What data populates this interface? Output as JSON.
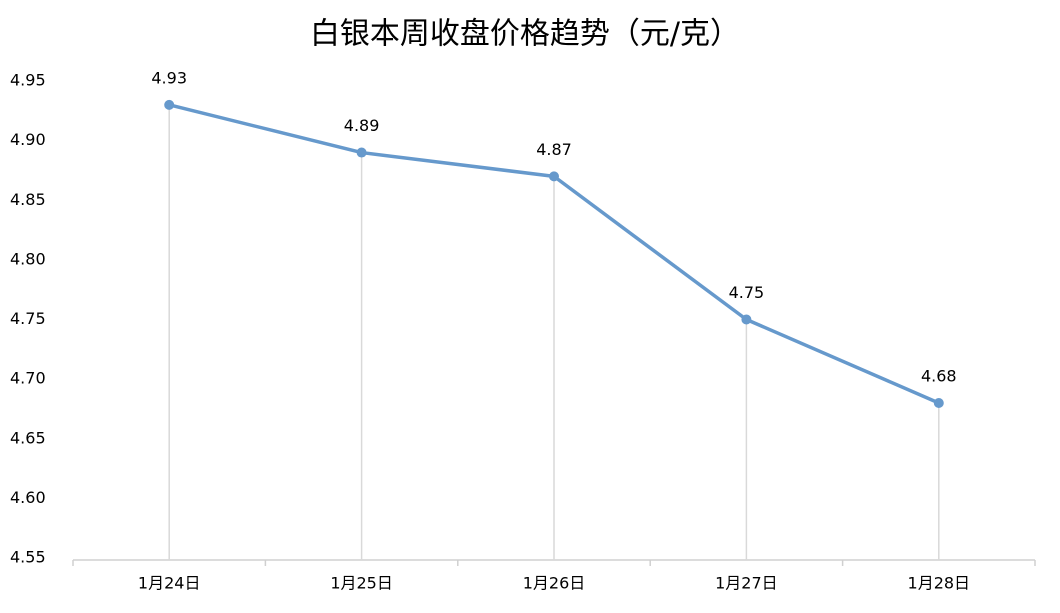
{
  "chart_data": {
    "type": "line",
    "title": "白银本周收盘价格趋势（元/克）",
    "categories": [
      "1月24日",
      "1月25日",
      "1月26日",
      "1月27日",
      "1月28日"
    ],
    "series": [
      {
        "name": "收盘价",
        "color": "#6699cc",
        "values": [
          4.93,
          4.89,
          4.87,
          4.75,
          4.68
        ]
      }
    ],
    "ylim": [
      4.55,
      4.95
    ],
    "yticks": [
      4.55,
      {
        "value": 4.6,
        "label": "4.60"
      },
      4.65,
      {
        "value": 4.7,
        "label": "4.70"
      },
      4.75,
      {
        "value": 4.8,
        "label": "4.80"
      },
      4.85,
      {
        "value": 4.9,
        "label": "4.90"
      },
      4.95
    ],
    "drop_lines": true
  }
}
